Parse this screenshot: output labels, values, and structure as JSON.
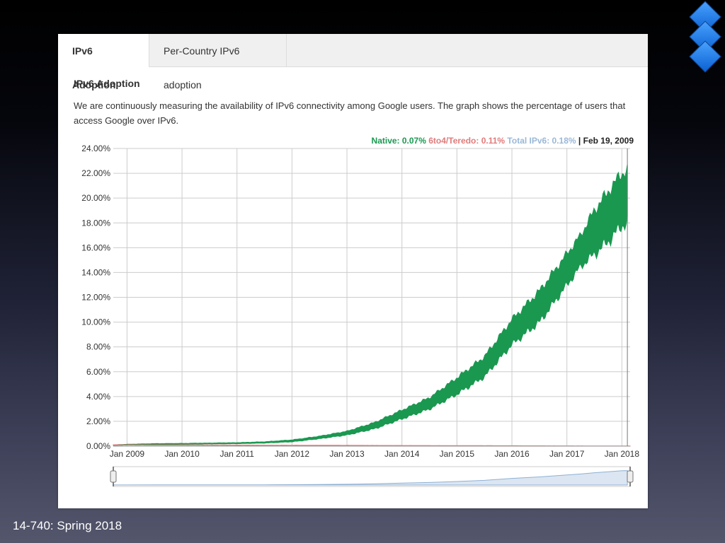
{
  "tabs": [
    {
      "label": "IPv6 Adoption",
      "active": true
    },
    {
      "label": "Per-Country IPv6 adoption",
      "active": false
    }
  ],
  "section_title": "IPv6 Adoption",
  "description": "We are continuously measuring the availability of IPv6 connectivity among Google users. The graph shows the percentage of users that access Google over IPv6.",
  "legend": {
    "native": "Native: 0.07%",
    "teredo": "6to4/Teredo: 0.11%",
    "total": "Total IPv6: 0.18%",
    "separator": " | ",
    "date": "Feb 19, 2009",
    "native_color": "#1a9850",
    "teredo_color": "#e07b7b",
    "total_color": "#9ab8d8"
  },
  "footer": "14-740: Spring 2018",
  "icons": [
    "diamond-icon",
    "diamond-icon",
    "diamond-icon"
  ],
  "chart_data": {
    "type": "area",
    "ylim": [
      0,
      24
    ],
    "y_ticks": [
      "0.00%",
      "2.00%",
      "4.00%",
      "6.00%",
      "8.00%",
      "10.00%",
      "12.00%",
      "14.00%",
      "16.00%",
      "18.00%",
      "20.00%",
      "22.00%",
      "24.00%"
    ],
    "x_ticks": [
      "Jan 2009",
      "Jan 2010",
      "Jan 2011",
      "Jan 2012",
      "Jan 2013",
      "Jan 2014",
      "Jan 2015",
      "Jan 2016",
      "Jan 2017",
      "Jan 2018"
    ],
    "xlim": [
      2008.75,
      2018.15
    ],
    "grid": true,
    "series": [
      {
        "name": "Native",
        "color": "#1a9850",
        "x": [
          2008.75,
          2009.0,
          2009.5,
          2010.0,
          2010.5,
          2011.0,
          2011.5,
          2012.0,
          2012.5,
          2013.0,
          2013.5,
          2014.0,
          2014.5,
          2015.0,
          2015.5,
          2016.0,
          2016.5,
          2017.0,
          2017.25,
          2017.5,
          2017.75,
          2018.0,
          2018.1
        ],
        "low": [
          0.05,
          0.1,
          0.12,
          0.15,
          0.18,
          0.2,
          0.25,
          0.35,
          0.6,
          0.9,
          1.4,
          2.2,
          3.0,
          4.2,
          5.6,
          8.2,
          10.0,
          13.0,
          14.5,
          15.5,
          16.5,
          17.8,
          18.0
        ],
        "high": [
          0.1,
          0.15,
          0.2,
          0.22,
          0.25,
          0.28,
          0.35,
          0.5,
          0.8,
          1.2,
          1.9,
          2.9,
          3.9,
          5.5,
          7.2,
          10.2,
          12.5,
          15.5,
          17.0,
          19.0,
          20.5,
          22.0,
          22.2
        ]
      },
      {
        "name": "6to4/Teredo",
        "color": "#e07b7b",
        "x": [
          2008.75,
          2018.15
        ],
        "low": [
          0.08,
          0.0
        ],
        "high": [
          0.11,
          0.01
        ]
      }
    ]
  }
}
